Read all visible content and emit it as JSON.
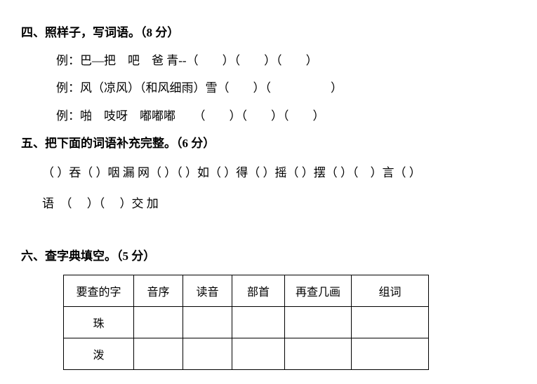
{
  "section4": {
    "header": "四、照样子，写词语。（8 分）",
    "examples": [
      "例：巴—把　吧　爸 青--（　　）（　　）（　　）",
      "例：风（凉风）（和风细雨）雪（　　）（　　　　　）",
      "例：啪　吱呀　嘟嘟嘟　　（　　）（　　）（　　）"
    ]
  },
  "section5": {
    "header": "五、把下面的词语补充完整。（6 分）",
    "lines": [
      "（ ）吞（ ）咽 漏 网（ ）（ ）如（ ）得（ ）摇（ ）摆（ ）（　）言（  ）",
      "语　（　 ）（　 ）交 加"
    ]
  },
  "section6": {
    "header": "六、查字典填空。（5 分）",
    "table": {
      "headers": [
        "要查的字",
        "音序",
        "读音",
        "部首",
        "再查几画",
        "组词"
      ],
      "rows": [
        [
          "珠",
          "",
          "",
          "",
          "",
          ""
        ],
        [
          "泼",
          "",
          "",
          "",
          "",
          ""
        ]
      ],
      "col_classes": [
        "col-char",
        "col-yinxu",
        "col-duyin",
        "col-bushou",
        "col-zaicha",
        "col-zuci"
      ]
    }
  }
}
